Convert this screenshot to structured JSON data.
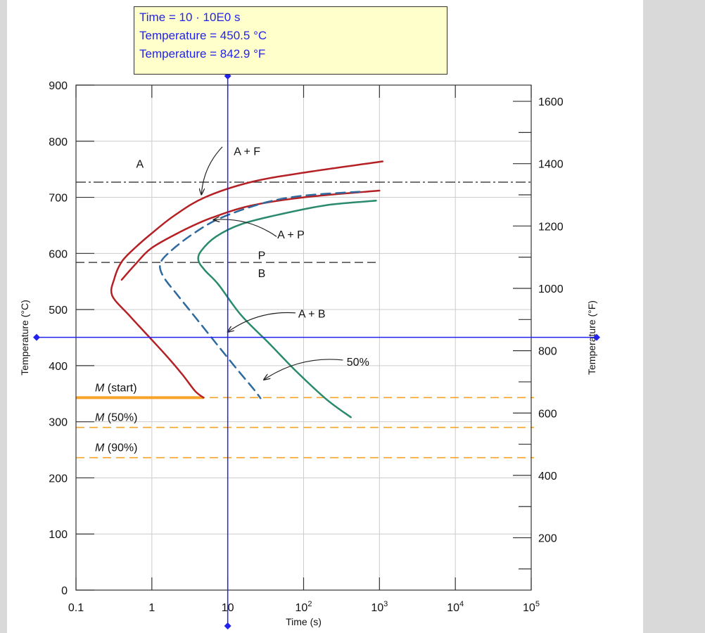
{
  "readout": {
    "time": "Time = 10 · 10E0 s",
    "temp_c": "Temperature = 450.5 °C",
    "temp_f": "Temperature = 842.9 °F"
  },
  "colors": {
    "red_curve": "#b52025",
    "blue_dashed": "#2e6a9e",
    "green_curve": "#2a8a6e",
    "martensite": "#f7a327",
    "crosshair": "#2222ee",
    "panel_gray": "#d9d9d9",
    "readout_bg": "#ffffcc"
  },
  "chart_data": {
    "type": "line",
    "xlabel": "Time (s)",
    "ylabel": "Temperature (°C)",
    "y2label": "Temperature (°F)",
    "x_scale": "log",
    "xlim": [
      0.1,
      100000
    ],
    "ylim": [
      0,
      900
    ],
    "y2lim": [
      32,
      1652
    ],
    "grid": true,
    "x_ticks": [
      {
        "value": 0.1,
        "label": "0.1",
        "sup": ""
      },
      {
        "value": 1,
        "label": "1",
        "sup": ""
      },
      {
        "value": 10,
        "label": "10",
        "sup": ""
      },
      {
        "value": 100,
        "label": "10",
        "sup": "2"
      },
      {
        "value": 1000,
        "label": "10",
        "sup": "3"
      },
      {
        "value": 10000,
        "label": "10",
        "sup": "4"
      },
      {
        "value": 100000,
        "label": "10",
        "sup": "5"
      }
    ],
    "y_ticks": [
      0,
      100,
      200,
      300,
      400,
      500,
      600,
      700,
      800,
      900
    ],
    "y2_ticks": [
      200,
      400,
      600,
      800,
      1000,
      1200,
      1400,
      1600
    ],
    "reference_lines": [
      {
        "y": 727,
        "style": "dash-dot",
        "from": 0.1,
        "to": 100000
      },
      {
        "y": 584,
        "style": "dashed",
        "from": 0.1,
        "to": 1000
      }
    ],
    "martensite_lines": [
      {
        "y": 343,
        "label_italic": "M",
        "label_rest": " (start)"
      },
      {
        "y": 290,
        "label_italic": "M",
        "label_rest": " (50%)"
      },
      {
        "y": 236,
        "label_italic": "M",
        "label_rest": " (90%)"
      }
    ],
    "martensite_bold_segment": {
      "y": 343,
      "from": 0.1,
      "to": 4.8
    },
    "series": [
      {
        "color": "#b52025",
        "dash": false,
        "points": [
          [
            1100,
            764
          ],
          [
            100,
            744
          ],
          [
            20,
            727
          ],
          [
            5,
            700
          ],
          [
            2,
            668
          ],
          [
            1,
            636
          ],
          [
            0.6,
            610
          ],
          [
            0.4,
            585
          ],
          [
            0.32,
            555
          ],
          [
            0.3,
            525
          ],
          [
            0.5,
            490
          ],
          [
            0.8,
            460
          ],
          [
            1.5,
            420
          ],
          [
            2.5,
            385
          ],
          [
            3.7,
            355
          ],
          [
            4.8,
            343
          ]
        ]
      },
      {
        "color": "#b52025",
        "dash": false,
        "points": [
          [
            1000,
            712
          ],
          [
            100,
            700
          ],
          [
            20,
            685
          ],
          [
            6,
            663
          ],
          [
            2.5,
            640
          ],
          [
            1,
            610
          ],
          [
            0.6,
            580
          ],
          [
            0.4,
            553
          ]
        ]
      },
      {
        "color": "#2e6a9e",
        "dash": true,
        "points": [
          [
            550,
            710
          ],
          [
            100,
            703
          ],
          [
            30,
            690
          ],
          [
            8,
            663
          ],
          [
            3.5,
            635
          ],
          [
            1.8,
            605
          ],
          [
            1.3,
            583
          ],
          [
            1.4,
            560
          ],
          [
            2.2,
            525
          ],
          [
            3.8,
            485
          ],
          [
            7,
            440
          ],
          [
            13,
            395
          ],
          [
            22,
            358
          ],
          [
            27,
            342
          ]
        ]
      },
      {
        "color": "#2a8a6e",
        "dash": false,
        "points": [
          [
            900,
            694
          ],
          [
            200,
            686
          ],
          [
            50,
            670
          ],
          [
            15,
            652
          ],
          [
            7,
            630
          ],
          [
            4.5,
            605
          ],
          [
            4.1,
            588
          ],
          [
            5,
            570
          ],
          [
            7.5,
            545
          ],
          [
            15,
            490
          ],
          [
            35,
            440
          ],
          [
            80,
            390
          ],
          [
            200,
            340
          ],
          [
            420,
            308
          ]
        ]
      }
    ],
    "annotations": [
      {
        "text": "A",
        "x": 0.62,
        "y": 753
      },
      {
        "text": "A + F",
        "x": 12,
        "y": 775,
        "arrow_from": [
          8.5,
          790
        ],
        "arrow_to": [
          4.5,
          705
        ]
      },
      {
        "text": "A + P",
        "x": 45,
        "y": 627,
        "arrow_from": [
          44,
          630
        ],
        "arrow_to": [
          6.5,
          660
        ]
      },
      {
        "text": "P",
        "x": 25,
        "y": 590
      },
      {
        "text": "B",
        "x": 25,
        "y": 558
      },
      {
        "text": "A + B",
        "x": 85,
        "y": 486,
        "arrow_from": [
          78,
          494
        ],
        "arrow_to": [
          10,
          460
        ]
      },
      {
        "text": "50%",
        "x": 370,
        "y": 400,
        "arrow_from": [
          330,
          410
        ],
        "arrow_to": [
          30,
          375
        ]
      }
    ],
    "crosshair": {
      "x": 10,
      "y": 450.5
    }
  }
}
